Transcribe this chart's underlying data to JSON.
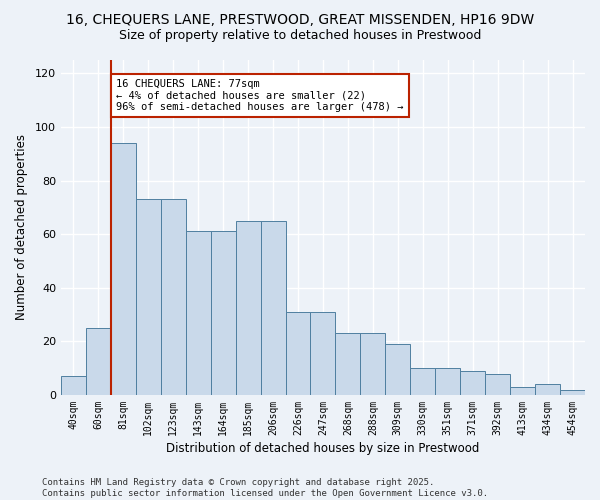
{
  "title1": "16, CHEQUERS LANE, PRESTWOOD, GREAT MISSENDEN, HP16 9DW",
  "title2": "Size of property relative to detached houses in Prestwood",
  "xlabel": "Distribution of detached houses by size in Prestwood",
  "ylabel": "Number of detached properties",
  "bar_labels": [
    "40sqm",
    "60sqm",
    "81sqm",
    "102sqm",
    "123sqm",
    "143sqm",
    "164sqm",
    "185sqm",
    "206sqm",
    "226sqm",
    "247sqm",
    "268sqm",
    "288sqm",
    "309sqm",
    "330sqm",
    "351sqm",
    "371sqm",
    "392sqm",
    "413sqm",
    "434sqm",
    "454sqm"
  ],
  "bar_values": [
    7,
    25,
    94,
    73,
    73,
    61,
    61,
    65,
    65,
    31,
    31,
    23,
    23,
    19,
    10,
    10,
    9,
    8,
    3,
    4,
    2
  ],
  "bar_color": "#c9d9ea",
  "bar_edge_color": "#4f7fa0",
  "background_color": "#edf2f8",
  "grid_color": "#d8e4f0",
  "vline_color": "#bb2200",
  "annotation_text": "16 CHEQUERS LANE: 77sqm\n← 4% of detached houses are smaller (22)\n96% of semi-detached houses are larger (478) →",
  "annotation_box_color": "#bb2200",
  "footer_text": "Contains HM Land Registry data © Crown copyright and database right 2025.\nContains public sector information licensed under the Open Government Licence v3.0.",
  "ylim": [
    0,
    125
  ],
  "yticks": [
    0,
    20,
    40,
    60,
    80,
    100,
    120
  ],
  "title1_fontsize": 10,
  "title2_fontsize": 9,
  "xlabel_fontsize": 8.5,
  "ylabel_fontsize": 8.5,
  "ann_fontsize": 7.5,
  "footer_fontsize": 6.5
}
